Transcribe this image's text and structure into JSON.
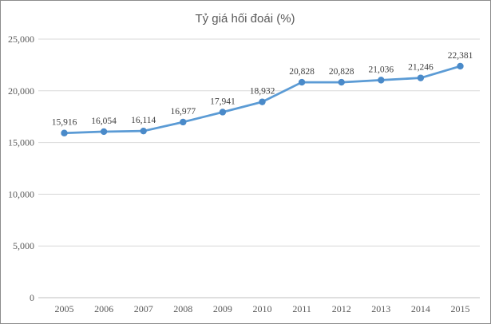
{
  "chart_data": {
    "type": "line",
    "title": "Tỷ giá hối đoái (%)",
    "categories": [
      "2005",
      "2006",
      "2007",
      "2008",
      "2009",
      "2010",
      "2011",
      "2012",
      "2013",
      "2014",
      "2015"
    ],
    "values": [
      15916,
      16054,
      16114,
      16977,
      17941,
      18932,
      20828,
      20828,
      21036,
      21246,
      22381
    ],
    "data_labels": [
      "15,916",
      "16,054",
      "16,114",
      "16,977",
      "17,941",
      "18,932",
      "20,828",
      "20,828",
      "21,036",
      "21,246",
      "22,381"
    ],
    "y_ticks": [
      0,
      5000,
      10000,
      15000,
      20000,
      25000
    ],
    "y_tick_labels": [
      "0",
      "5,000",
      "10,000",
      "15,000",
      "20,000",
      "25,000"
    ],
    "ylim": [
      0,
      25000
    ],
    "xlabel": "",
    "ylabel": "",
    "grid": true,
    "legend_position": "none",
    "line_color": "#5b9bd5",
    "marker_color": "#4a8ac9",
    "gridline_color": "#d9d9d9",
    "axis_line_color": "#bfbfbf",
    "title_color": "#595959",
    "tick_label_color": "#595959",
    "data_label_color": "#3f3f3f"
  }
}
